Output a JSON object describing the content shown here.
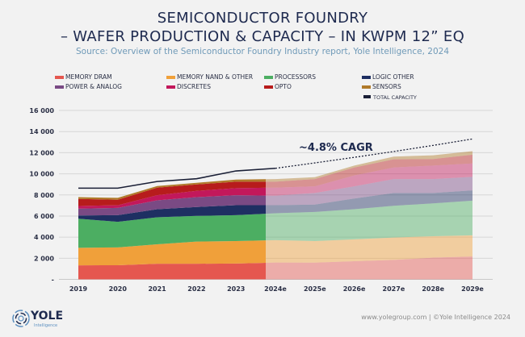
{
  "header": {
    "title_line1": "SEMICONDUCTOR FOUNDRY",
    "title_line2": "– WAFER PRODUCTION & CAPACITY – IN KWPM 12” EQ",
    "source": "Source: Overview of the Semiconductor Foundry Industry report, Yole Intelligence, 2024"
  },
  "footer": {
    "credit": "www.yolegroup.com | ©Yole Intelligence 2024",
    "logo_text": "YOLE",
    "logo_sub": "Intelligence"
  },
  "chart_data": {
    "type": "area",
    "stacked": true,
    "categories": [
      "2019",
      "2020",
      "2021",
      "2022",
      "2023",
      "2024e",
      "2025e",
      "2026e",
      "2027e",
      "2028e",
      "2029e"
    ],
    "forecast_from": "2024e",
    "ylim": [
      0,
      16000
    ],
    "yticks": [
      0,
      2000,
      4000,
      6000,
      8000,
      10000,
      12000,
      14000,
      16000
    ],
    "ytick_labels": [
      "-",
      "2 000",
      "4 000",
      "6 000",
      "8 000",
      "10 000",
      "12 000",
      "14 000",
      "16 000"
    ],
    "grid": true,
    "legend_placement": "top",
    "series": [
      {
        "name": "MEMORY DRAM",
        "color": "#e5574f",
        "values": [
          1330,
          1340,
          1480,
          1480,
          1500,
          1590,
          1580,
          1720,
          1840,
          2060,
          2170
        ]
      },
      {
        "name": "MEMORY NAND & OTHER",
        "color": "#f0a03a",
        "values": [
          1660,
          1690,
          1840,
          2100,
          2130,
          2120,
          2050,
          2070,
          2120,
          2030,
          2000
        ]
      },
      {
        "name": "PROCESSORS",
        "color": "#4cae62",
        "values": [
          2760,
          2420,
          2560,
          2430,
          2450,
          2550,
          2760,
          2850,
          3010,
          3110,
          3290
        ]
      },
      {
        "name": "LOGIC OTHER",
        "color": "#1e2f62",
        "values": [
          300,
          630,
          760,
          840,
          950,
          770,
          690,
          1020,
          1210,
          980,
          970
        ]
      },
      {
        "name": "POWER & ANALOG",
        "color": "#7a4a84",
        "values": [
          650,
          690,
          840,
          940,
          940,
          890,
          1100,
          1150,
          1320,
          1320,
          1280
        ]
      },
      {
        "name": "DISCRETES",
        "color": "#c2185b",
        "values": [
          250,
          250,
          490,
          590,
          670,
          770,
          630,
          1030,
          1100,
          1280,
          1270
        ]
      },
      {
        "name": "OPTO",
        "color": "#b71c1c",
        "values": [
          670,
          520,
          720,
          610,
          610,
          560,
          690,
          760,
          770,
          620,
          830
        ]
      },
      {
        "name": "SENSORS",
        "color": "#b07a2a",
        "values": [
          170,
          180,
          150,
          160,
          200,
          250,
          180,
          180,
          260,
          350,
          330
        ]
      }
    ],
    "line": {
      "name": "TOTAL CAPACITY",
      "color": "#1a1f36",
      "values": [
        8640,
        8640,
        9270,
        9530,
        10270,
        10520,
        11030,
        11560,
        12110,
        12690,
        13300
      ]
    },
    "annotation": "~4.8% CAGR"
  }
}
